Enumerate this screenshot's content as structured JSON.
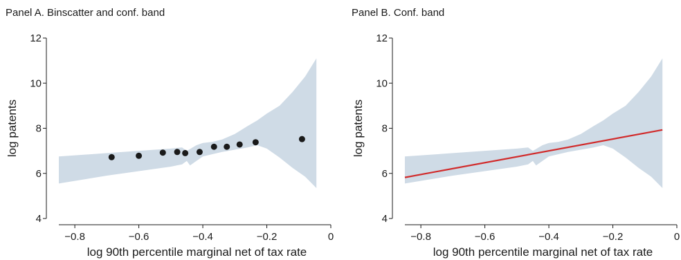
{
  "chart_data": [
    {
      "type": "scatter",
      "title": "Panel A. Binscatter and conf. band",
      "xlabel": "log 90th percentile marginal net of tax rate",
      "ylabel": "log patents",
      "xlim": [
        -0.85,
        0.0
      ],
      "ylim": [
        4,
        12
      ],
      "xticks": [
        -0.8,
        -0.6,
        -0.4,
        -0.2,
        0
      ],
      "xtick_labels": [
        "−0.8",
        "−0.6",
        "−0.4",
        "−0.2",
        "0"
      ],
      "yticks": [
        4,
        6,
        8,
        10,
        12
      ],
      "ytick_labels": [
        "4",
        "6",
        "8",
        "10",
        "12"
      ],
      "grid": false,
      "colors": {
        "band": "#cfdbe6",
        "points": "#1a1a1a"
      },
      "points": {
        "x": [
          -0.685,
          -0.6,
          -0.525,
          -0.48,
          -0.455,
          -0.41,
          -0.365,
          -0.325,
          -0.285,
          -0.235,
          -0.09
        ],
        "y": [
          6.72,
          6.78,
          6.92,
          6.95,
          6.9,
          6.95,
          7.18,
          7.18,
          7.28,
          7.38,
          7.52
        ]
      },
      "band": {
        "x": [
          -0.85,
          -0.7,
          -0.6,
          -0.5,
          -0.465,
          -0.45,
          -0.44,
          -0.42,
          -0.4,
          -0.37,
          -0.34,
          -0.3,
          -0.26,
          -0.23,
          -0.2,
          -0.16,
          -0.12,
          -0.08,
          -0.045
        ],
        "upper": [
          6.75,
          6.9,
          7.0,
          7.1,
          7.15,
          7.0,
          7.08,
          7.25,
          7.35,
          7.4,
          7.5,
          7.75,
          8.1,
          8.35,
          8.65,
          9.0,
          9.6,
          10.3,
          11.1
        ],
        "lower": [
          5.55,
          5.9,
          6.1,
          6.3,
          6.4,
          6.55,
          6.35,
          6.55,
          6.75,
          6.85,
          6.95,
          7.05,
          7.15,
          7.25,
          7.1,
          6.7,
          6.25,
          5.85,
          5.35
        ]
      }
    },
    {
      "type": "line",
      "title": "Panel B. Conf. band",
      "xlabel": "log 90th percentile marginal net of tax rate",
      "ylabel": "log patents",
      "xlim": [
        -0.85,
        0.0
      ],
      "ylim": [
        4,
        12
      ],
      "xticks": [
        -0.8,
        -0.6,
        -0.4,
        -0.2,
        0
      ],
      "xtick_labels": [
        "−0.8",
        "−0.6",
        "−0.4",
        "−0.2",
        "0"
      ],
      "yticks": [
        4,
        6,
        8,
        10,
        12
      ],
      "ytick_labels": [
        "4",
        "6",
        "8",
        "10",
        "12"
      ],
      "grid": false,
      "colors": {
        "band": "#cfdbe6",
        "line": "#d12a2a"
      },
      "line": {
        "x": [
          -0.85,
          -0.045
        ],
        "y": [
          5.82,
          7.93
        ]
      },
      "band": {
        "x": [
          -0.85,
          -0.7,
          -0.6,
          -0.5,
          -0.465,
          -0.45,
          -0.44,
          -0.42,
          -0.4,
          -0.37,
          -0.34,
          -0.3,
          -0.26,
          -0.23,
          -0.2,
          -0.16,
          -0.12,
          -0.08,
          -0.045
        ],
        "upper": [
          6.75,
          6.9,
          7.0,
          7.1,
          7.15,
          7.0,
          7.08,
          7.25,
          7.35,
          7.4,
          7.5,
          7.75,
          8.1,
          8.35,
          8.65,
          9.0,
          9.6,
          10.3,
          11.1
        ],
        "lower": [
          5.55,
          5.9,
          6.1,
          6.3,
          6.4,
          6.55,
          6.35,
          6.55,
          6.75,
          6.85,
          6.95,
          7.05,
          7.15,
          7.25,
          7.1,
          6.7,
          6.25,
          5.85,
          5.35
        ]
      }
    }
  ]
}
